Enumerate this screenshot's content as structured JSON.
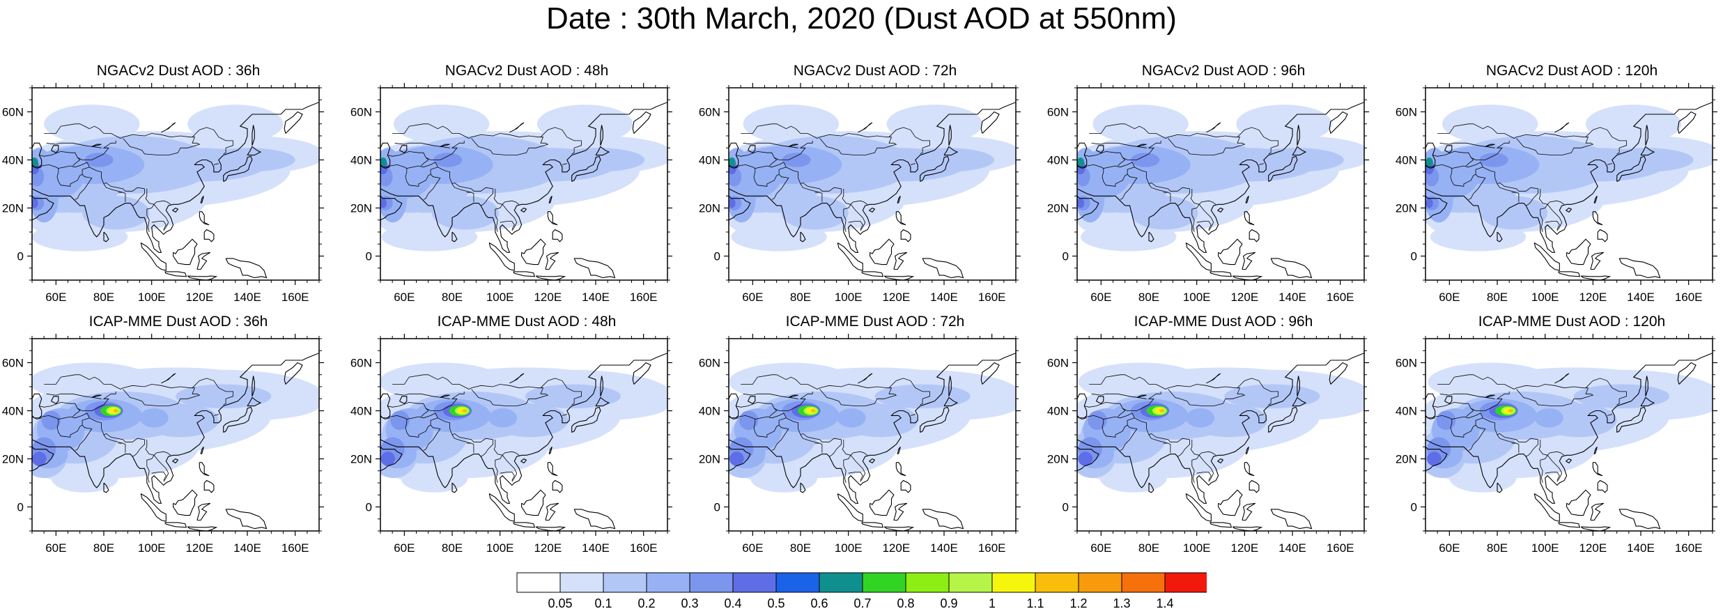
{
  "title": "Date : 30th March, 2020 (Dust AOD at 550nm)",
  "panels": [
    {
      "title": "NGACv2 Dust AOD : 36h",
      "model": "ngac",
      "hour": 36
    },
    {
      "title": "NGACv2 Dust AOD : 48h",
      "model": "ngac",
      "hour": 48
    },
    {
      "title": "NGACv2 Dust AOD : 72h",
      "model": "ngac",
      "hour": 72
    },
    {
      "title": "NGACv2 Dust AOD : 96h",
      "model": "ngac",
      "hour": 96
    },
    {
      "title": "NGACv2 Dust AOD : 120h",
      "model": "ngac",
      "hour": 120
    },
    {
      "title": "ICAP-MME Dust AOD : 36h",
      "model": "icap",
      "hour": 36
    },
    {
      "title": "ICAP-MME Dust AOD : 48h",
      "model": "icap",
      "hour": 48
    },
    {
      "title": "ICAP-MME Dust AOD : 72h",
      "model": "icap",
      "hour": 72
    },
    {
      "title": "ICAP-MME Dust AOD : 96h",
      "model": "icap",
      "hour": 96
    },
    {
      "title": "ICAP-MME Dust AOD : 120h",
      "model": "icap",
      "hour": 120
    }
  ],
  "map_extent": {
    "lon_min": 50,
    "lon_max": 170,
    "lat_min": -10,
    "lat_max": 70
  },
  "lon_ticks": [
    60,
    80,
    100,
    120,
    140,
    160
  ],
  "lon_tick_labels": [
    "60E",
    "80E",
    "100E",
    "120E",
    "140E",
    "160E"
  ],
  "lat_ticks": [
    0,
    20,
    40,
    60
  ],
  "lat_tick_labels": [
    "0",
    "20N",
    "40N",
    "60N"
  ],
  "colorbar": {
    "labels": [
      "0.05",
      "0.1",
      "0.2",
      "0.3",
      "0.4",
      "0.5",
      "0.6",
      "0.7",
      "0.8",
      "0.9",
      "1",
      "1.1",
      "1.2",
      "1.3",
      "1.4"
    ],
    "colors": [
      "#ffffff",
      "#d5e1fb",
      "#b3c7f7",
      "#97b2f4",
      "#7c96ee",
      "#5d6ee6",
      "#1a63e8",
      "#108f8f",
      "#32d424",
      "#8cee12",
      "#b6f548",
      "#f6f60c",
      "#f8be0a",
      "#f79a0c",
      "#f6700c",
      "#f3180c"
    ]
  }
}
